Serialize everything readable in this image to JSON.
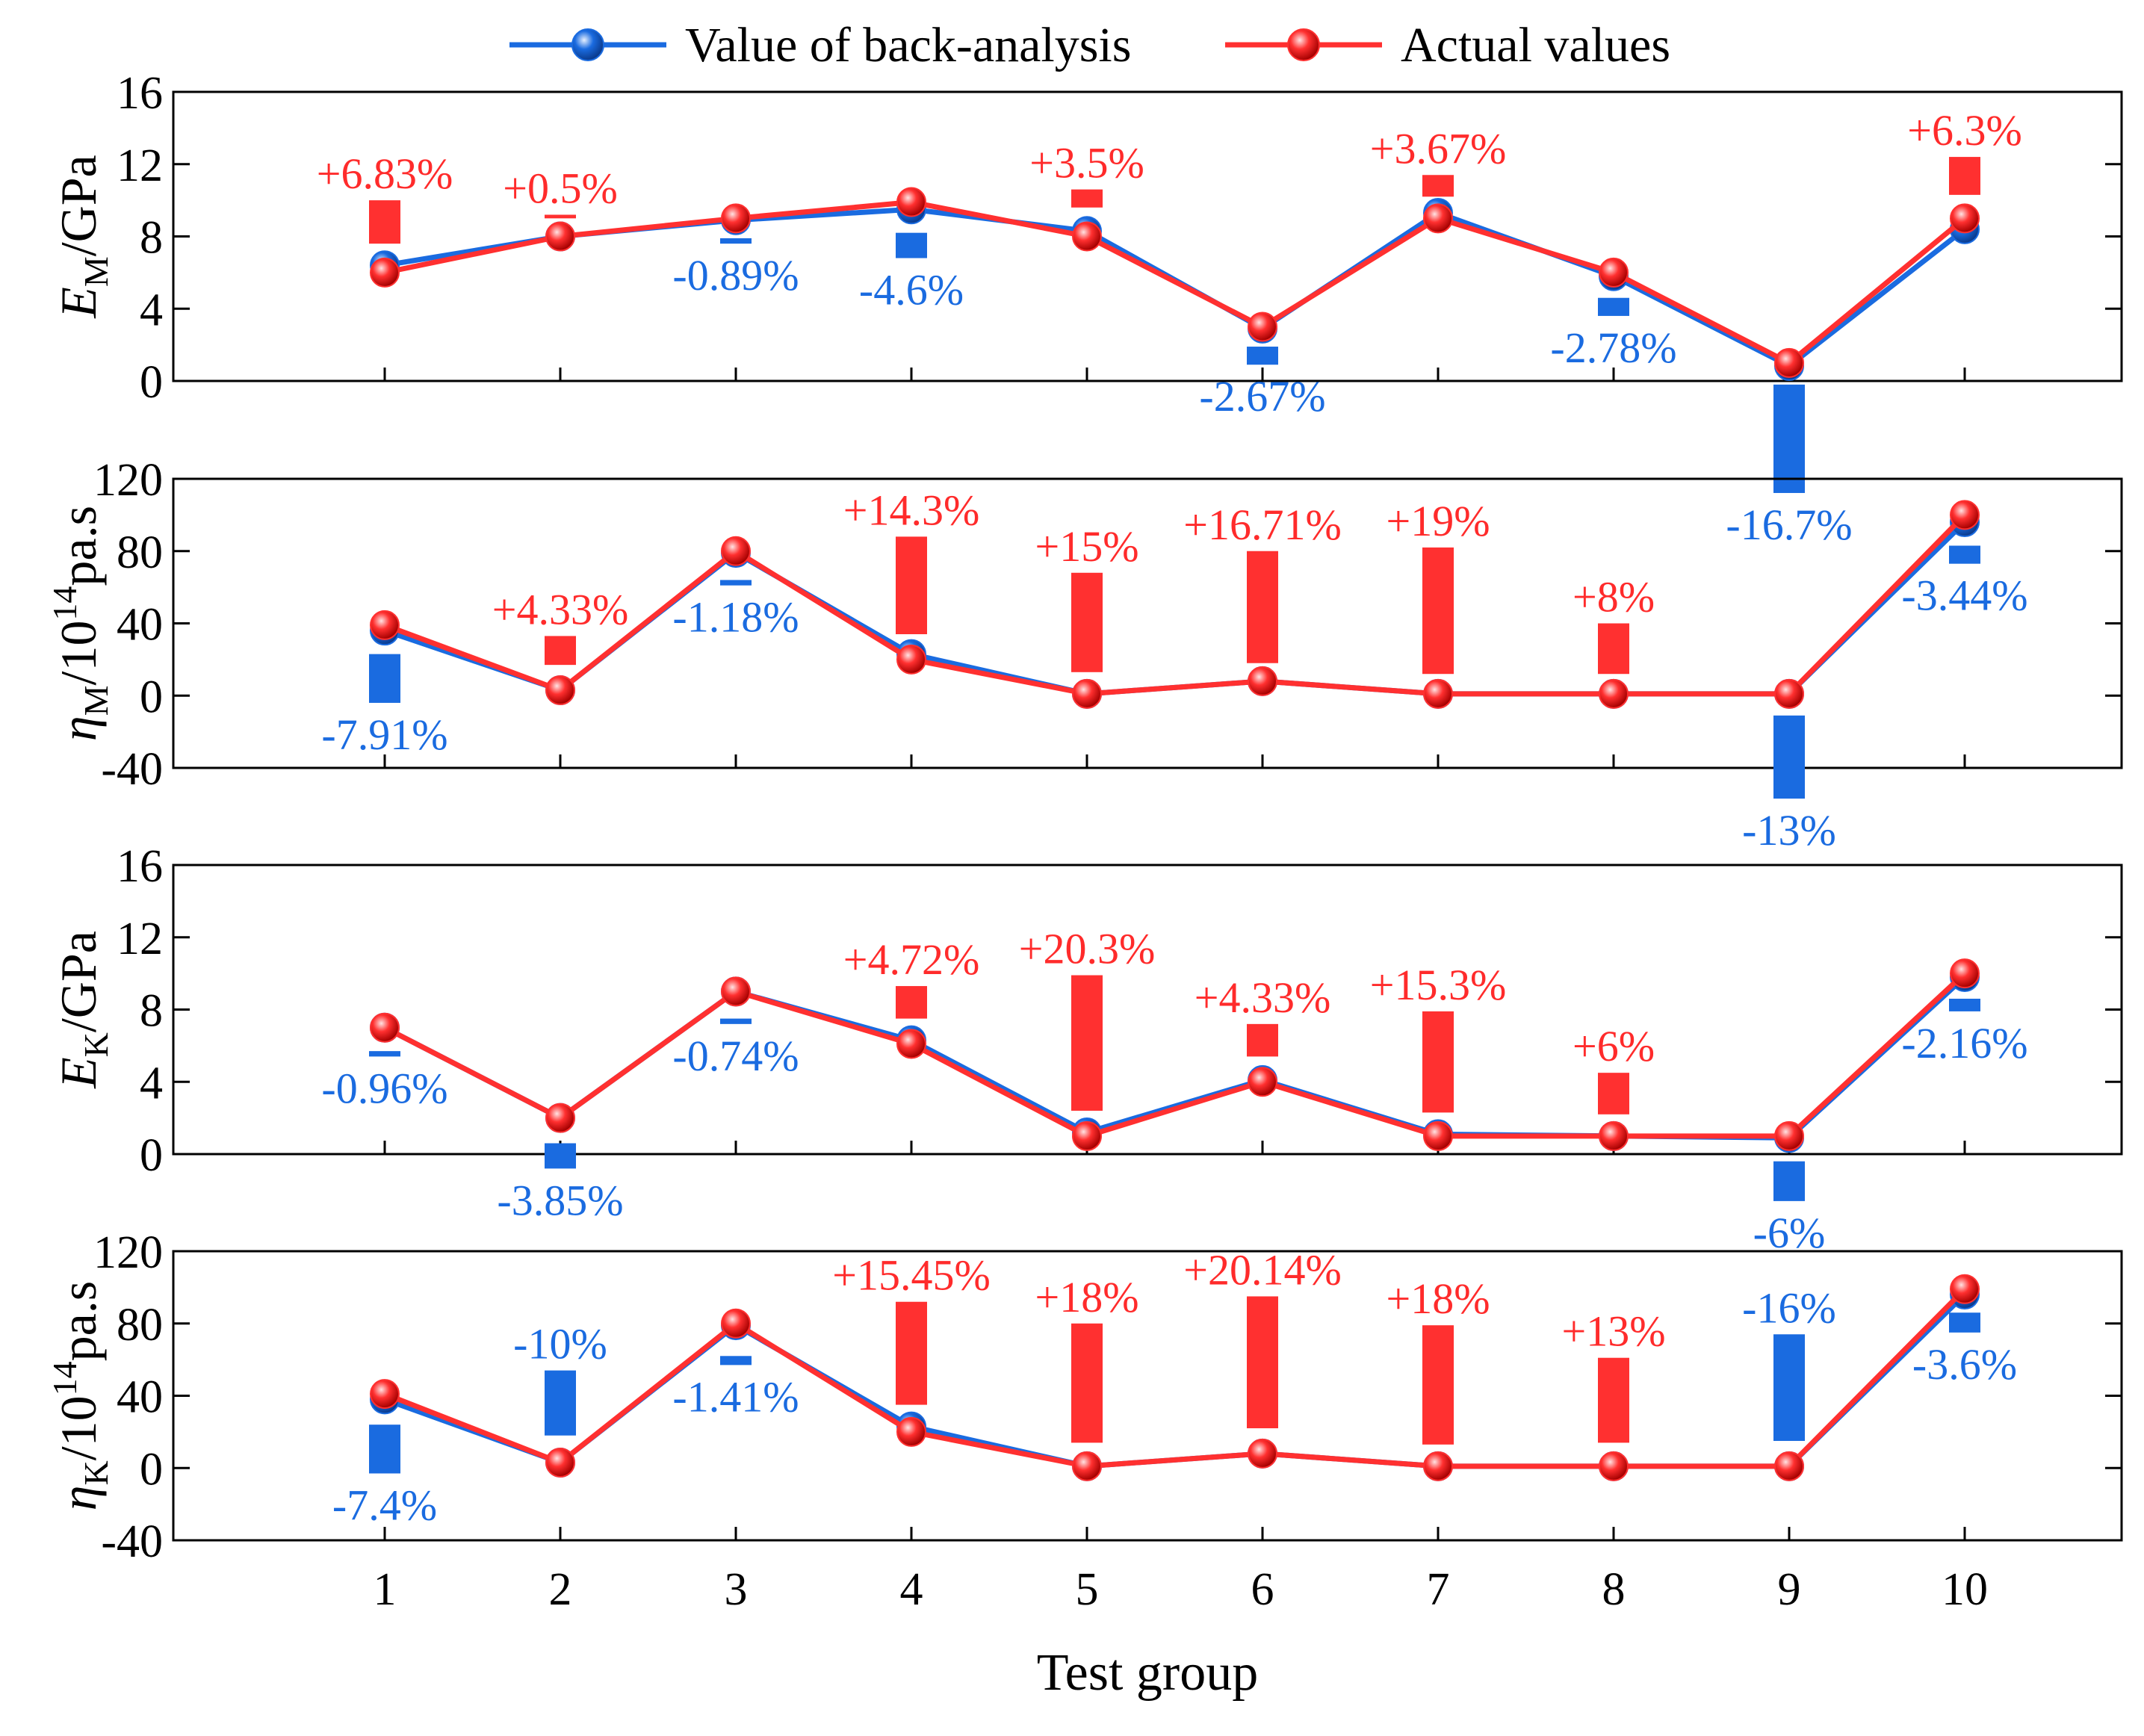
{
  "colors": {
    "back_analysis": "#1a6be0",
    "actual": "#ff3030",
    "positive_label": "#ff2b2b",
    "negative_label": "#1a6be0",
    "axis": "#000000"
  },
  "legend": {
    "back_analysis": "Value of back-analysis",
    "actual": "Actual values"
  },
  "chart_data": {
    "type": "line",
    "xlabel": "Test group",
    "categories": [
      "1",
      "2",
      "3",
      "4",
      "5",
      "6",
      "7",
      "8",
      "9",
      "10"
    ],
    "panels": [
      {
        "id": "em",
        "ylabel_main": "E",
        "ylabel_sub": "M",
        "ylabel_sup": "",
        "ylabel_unit": "/GPa",
        "ylim": [
          0,
          16
        ],
        "yticks": [
          0,
          4,
          8,
          12,
          16
        ],
        "series": [
          {
            "name": "Value of back-analysis",
            "values": [
              6.4,
              8.0,
              8.9,
              9.5,
              8.3,
              2.9,
              9.3,
              5.8,
              0.83,
              8.4
            ]
          },
          {
            "name": "Actual values",
            "values": [
              6.0,
              8.0,
              9.0,
              9.9,
              8.0,
              3.0,
              9.0,
              6.0,
              1.0,
              9.0
            ]
          }
        ],
        "errors": [
          {
            "label": "+6.83%",
            "sign": "pos",
            "bar": [
              7.6,
              10.0
            ],
            "label_pos": "above"
          },
          {
            "label": "+0.5%",
            "sign": "pos",
            "bar": [
              9.0,
              9.2
            ],
            "label_pos": "above"
          },
          {
            "label": "-0.89%",
            "sign": "neg",
            "bar": [
              7.6,
              7.9
            ],
            "label_pos": "below"
          },
          {
            "label": "-4.6%",
            "sign": "neg",
            "bar": [
              6.8,
              8.2
            ],
            "label_pos": "below"
          },
          {
            "label": "+3.5%",
            "sign": "pos",
            "bar": [
              9.6,
              10.6
            ],
            "label_pos": "above"
          },
          {
            "label": "-2.67%",
            "sign": "neg",
            "bar": [
              0.9,
              1.9
            ],
            "label_pos": "below"
          },
          {
            "label": "+3.67%",
            "sign": "pos",
            "bar": [
              10.2,
              11.4
            ],
            "label_pos": "above"
          },
          {
            "label": "-2.78%",
            "sign": "neg",
            "bar": [
              3.6,
              4.6
            ],
            "label_pos": "below"
          },
          {
            "label": "-16.7%",
            "sign": "neg",
            "bar": [
              -6.2,
              -0.2
            ],
            "label_pos": "below"
          },
          {
            "label": "+6.3%",
            "sign": "pos",
            "bar": [
              10.3,
              12.4
            ],
            "label_pos": "above"
          }
        ]
      },
      {
        "id": "etam",
        "ylabel_main": "η",
        "ylabel_sub": "M",
        "ylabel_sup": "14",
        "ylabel_unit": "/10",
        "ylabel_tail": "pa.s",
        "ylim": [
          -40,
          120
        ],
        "yticks": [
          -40,
          0,
          40,
          80,
          120
        ],
        "series": [
          {
            "name": "Value of back-analysis",
            "values": [
              36,
              3,
              79,
              23,
              1,
              8,
              1,
              1,
              1,
              96
            ]
          },
          {
            "name": "Actual values",
            "values": [
              39,
              3,
              80,
              20,
              1,
              8,
              1,
              1,
              1,
              100
            ]
          }
        ],
        "errors": [
          {
            "label": "-7.91%",
            "sign": "neg",
            "bar": [
              -4,
              23
            ],
            "label_pos": "below"
          },
          {
            "label": "+4.33%",
            "sign": "pos",
            "bar": [
              17,
              33
            ],
            "label_pos": "above"
          },
          {
            "label": "-1.18%",
            "sign": "neg",
            "bar": [
              61,
              64
            ],
            "label_pos": "below"
          },
          {
            "label": "+14.3%",
            "sign": "pos",
            "bar": [
              34,
              88
            ],
            "label_pos": "above"
          },
          {
            "label": "+15%",
            "sign": "pos",
            "bar": [
              13,
              68
            ],
            "label_pos": "above"
          },
          {
            "label": "+16.71%",
            "sign": "pos",
            "bar": [
              18,
              80
            ],
            "label_pos": "above"
          },
          {
            "label": "+19%",
            "sign": "pos",
            "bar": [
              12,
              82
            ],
            "label_pos": "above"
          },
          {
            "label": "+8%",
            "sign": "pos",
            "bar": [
              12,
              40
            ],
            "label_pos": "above"
          },
          {
            "label": "-13%",
            "sign": "neg",
            "bar": [
              -57,
              -11
            ],
            "label_pos": "below"
          },
          {
            "label": "-3.44%",
            "sign": "neg",
            "bar": [
              73,
              83
            ],
            "label_pos": "below"
          }
        ]
      },
      {
        "id": "ek",
        "ylabel_main": "E",
        "ylabel_sub": "K",
        "ylabel_sup": "",
        "ylabel_unit": "/GPa",
        "ylim": [
          0,
          16
        ],
        "yticks": [
          0,
          4,
          8,
          12,
          16
        ],
        "series": [
          {
            "name": "Value of back-analysis",
            "values": [
              7.0,
              2.0,
              9.0,
              6.3,
              1.2,
              4.1,
              1.1,
              1.0,
              0.9,
              9.8
            ]
          },
          {
            "name": "Actual values",
            "values": [
              7.0,
              2.0,
              9.0,
              6.1,
              1.0,
              4.0,
              1.0,
              1.0,
              1.0,
              10.0
            ]
          }
        ],
        "errors": [
          {
            "label": "-0.96%",
            "sign": "neg",
            "bar": [
              5.4,
              5.7
            ],
            "label_pos": "below"
          },
          {
            "label": "-3.85%",
            "sign": "neg",
            "bar": [
              -0.8,
              0.6
            ],
            "label_pos": "below"
          },
          {
            "label": "-0.74%",
            "sign": "neg",
            "bar": [
              7.2,
              7.5
            ],
            "label_pos": "below"
          },
          {
            "label": "+4.72%",
            "sign": "pos",
            "bar": [
              7.5,
              9.3
            ],
            "label_pos": "above"
          },
          {
            "label": "+20.3%",
            "sign": "pos",
            "bar": [
              2.4,
              9.9
            ],
            "label_pos": "above"
          },
          {
            "label": "+4.33%",
            "sign": "pos",
            "bar": [
              5.4,
              7.2
            ],
            "label_pos": "above"
          },
          {
            "label": "+15.3%",
            "sign": "pos",
            "bar": [
              2.3,
              7.9
            ],
            "label_pos": "above"
          },
          {
            "label": "+6%",
            "sign": "pos",
            "bar": [
              2.2,
              4.5
            ],
            "label_pos": "above"
          },
          {
            "label": "-6%",
            "sign": "neg",
            "bar": [
              -2.6,
              -0.4
            ],
            "label_pos": "below"
          },
          {
            "label": "-2.16%",
            "sign": "neg",
            "bar": [
              7.9,
              8.6
            ],
            "label_pos": "below"
          }
        ]
      },
      {
        "id": "etak",
        "ylabel_main": "η",
        "ylabel_sub": "K",
        "ylabel_sup": "14",
        "ylabel_unit": "/10",
        "ylabel_tail": "pa.s",
        "ylim": [
          -40,
          120
        ],
        "yticks": [
          -40,
          0,
          40,
          80,
          120
        ],
        "series": [
          {
            "name": "Value of back-analysis",
            "values": [
              38,
              3,
              79,
              23,
              1,
              8,
              1,
              1,
              1,
              96
            ]
          },
          {
            "name": "Actual values",
            "values": [
              41,
              3,
              80,
              20,
              1,
              8,
              1,
              1,
              1,
              99
            ]
          }
        ],
        "errors": [
          {
            "label": "-7.4%",
            "sign": "neg",
            "bar": [
              -3,
              24
            ],
            "label_pos": "below"
          },
          {
            "label": "-10%",
            "sign": "neg",
            "bar": [
              18,
              54
            ],
            "label_pos": "above"
          },
          {
            "label": "-1.41%",
            "sign": "neg",
            "bar": [
              57,
              62
            ],
            "label_pos": "below"
          },
          {
            "label": "+15.45%",
            "sign": "pos",
            "bar": [
              35,
              92
            ],
            "label_pos": "above"
          },
          {
            "label": "+18%",
            "sign": "pos",
            "bar": [
              14,
              80
            ],
            "label_pos": "above"
          },
          {
            "label": "+20.14%",
            "sign": "pos",
            "bar": [
              22,
              95
            ],
            "label_pos": "above"
          },
          {
            "label": "+18%",
            "sign": "pos",
            "bar": [
              13,
              79
            ],
            "label_pos": "above"
          },
          {
            "label": "+13%",
            "sign": "pos",
            "bar": [
              14,
              61
            ],
            "label_pos": "above"
          },
          {
            "label": "-16%",
            "sign": "neg",
            "bar": [
              15,
              74
            ],
            "label_pos": "above"
          },
          {
            "label": "-3.6%",
            "sign": "neg",
            "bar": [
              75,
              86
            ],
            "label_pos": "below"
          }
        ]
      }
    ]
  }
}
